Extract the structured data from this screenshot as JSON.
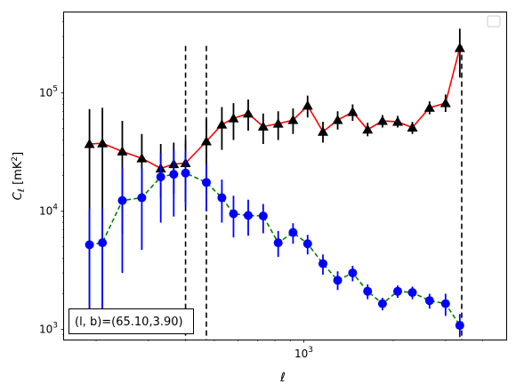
{
  "chart_data": {
    "type": "line",
    "title": "",
    "xlabel": "ℓ",
    "ylabel": "C",
    "ylabel_sub": "ℓ",
    "ylabel_unit": "[mK",
    "ylabel_unit_sup": "2",
    "ylabel_unit_end": "]",
    "xscale": "log",
    "yscale": "log",
    "xlim": [
      156,
      4800
    ],
    "ylim": [
      820,
      480000
    ],
    "x_tick_labels": [
      {
        "value": 1000,
        "base": "10",
        "exp": "3"
      }
    ],
    "y_tick_labels": [
      {
        "value": 1000,
        "base": "10",
        "exp": "3"
      },
      {
        "value": 10000,
        "base": "10",
        "exp": "4"
      },
      {
        "value": 100000,
        "base": "10",
        "exp": "5"
      }
    ],
    "legend": {
      "placement": "top-right",
      "entries": []
    },
    "vlines": [
      400,
      470,
      3400
    ],
    "annotation": "(l, b)=(65.10,3.90)",
    "series": [
      {
        "color": "#ff0000",
        "marker": "triangle",
        "marker_color": "#000000",
        "errbar_color": "#000000",
        "linestyle": "solid",
        "points": [
          {
            "x": 190,
            "y": 37000,
            "lo": 1000,
            "hi": 73000
          },
          {
            "x": 210,
            "y": 37500,
            "lo": 1000,
            "hi": 75000
          },
          {
            "x": 245,
            "y": 32000,
            "lo": 6500,
            "hi": 58000
          },
          {
            "x": 285,
            "y": 28000,
            "lo": 12000,
            "hi": 45000
          },
          {
            "x": 330,
            "y": 23000,
            "lo": 13000,
            "hi": 37000
          },
          {
            "x": 365,
            "y": 25000,
            "lo": 14000,
            "hi": 38000
          },
          {
            "x": 400,
            "y": 25500,
            "lo": 12000,
            "hi": 40000
          },
          {
            "x": 470,
            "y": 39000,
            "lo": 19000,
            "hi": 60000
          },
          {
            "x": 530,
            "y": 54000,
            "lo": 33000,
            "hi": 76000
          },
          {
            "x": 580,
            "y": 61000,
            "lo": 40000,
            "hi": 82000
          },
          {
            "x": 650,
            "y": 67000,
            "lo": 48000,
            "hi": 88000
          },
          {
            "x": 730,
            "y": 52000,
            "lo": 37000,
            "hi": 67000
          },
          {
            "x": 820,
            "y": 55000,
            "lo": 40000,
            "hi": 70000
          },
          {
            "x": 920,
            "y": 59000,
            "lo": 45000,
            "hi": 74000
          },
          {
            "x": 1030,
            "y": 78000,
            "lo": 62000,
            "hi": 95000
          },
          {
            "x": 1160,
            "y": 47000,
            "lo": 38000,
            "hi": 57000
          },
          {
            "x": 1300,
            "y": 59000,
            "lo": 49000,
            "hi": 70000
          },
          {
            "x": 1460,
            "y": 69000,
            "lo": 58000,
            "hi": 80000
          },
          {
            "x": 1640,
            "y": 49000,
            "lo": 43000,
            "hi": 56000
          },
          {
            "x": 1840,
            "y": 58000,
            "lo": 51000,
            "hi": 65000
          },
          {
            "x": 2070,
            "y": 57000,
            "lo": 51000,
            "hi": 64000
          },
          {
            "x": 2320,
            "y": 51000,
            "lo": 45000,
            "hi": 57000
          },
          {
            "x": 2650,
            "y": 75000,
            "lo": 66000,
            "hi": 85000
          },
          {
            "x": 3000,
            "y": 82000,
            "lo": 69000,
            "hi": 97000
          },
          {
            "x": 3350,
            "y": 240000,
            "lo": 135000,
            "hi": 350000
          }
        ]
      },
      {
        "color": "#008000",
        "marker": "circle",
        "marker_color": "#0000ff",
        "errbar_color": "#0000ff",
        "linestyle": "dashed",
        "points": [
          {
            "x": 190,
            "y": 5200,
            "lo": 1000,
            "hi": 10500
          },
          {
            "x": 210,
            "y": 5400,
            "lo": 1000,
            "hi": 10500
          },
          {
            "x": 245,
            "y": 12300,
            "lo": 3000,
            "hi": 23000
          },
          {
            "x": 285,
            "y": 13000,
            "lo": 4700,
            "hi": 23000
          },
          {
            "x": 330,
            "y": 19500,
            "lo": 8000,
            "hi": 31000
          },
          {
            "x": 365,
            "y": 20500,
            "lo": 9000,
            "hi": 33000
          },
          {
            "x": 400,
            "y": 21000,
            "lo": 11000,
            "hi": 32000
          },
          {
            "x": 470,
            "y": 17500,
            "lo": 10000,
            "hi": 25000
          },
          {
            "x": 530,
            "y": 13000,
            "lo": 8000,
            "hi": 18500
          },
          {
            "x": 580,
            "y": 9500,
            "lo": 6000,
            "hi": 13500
          },
          {
            "x": 650,
            "y": 9200,
            "lo": 6200,
            "hi": 12500
          },
          {
            "x": 730,
            "y": 9100,
            "lo": 6500,
            "hi": 11500
          },
          {
            "x": 820,
            "y": 5400,
            "lo": 4100,
            "hi": 6800
          },
          {
            "x": 920,
            "y": 6600,
            "lo": 5300,
            "hi": 7900
          },
          {
            "x": 1030,
            "y": 5300,
            "lo": 4300,
            "hi": 6300
          },
          {
            "x": 1160,
            "y": 3600,
            "lo": 2900,
            "hi": 4300
          },
          {
            "x": 1300,
            "y": 2600,
            "lo": 2150,
            "hi": 3100
          },
          {
            "x": 1460,
            "y": 3000,
            "lo": 2550,
            "hi": 3450
          },
          {
            "x": 1640,
            "y": 2100,
            "lo": 1800,
            "hi": 2400
          },
          {
            "x": 1840,
            "y": 1650,
            "lo": 1450,
            "hi": 1850
          },
          {
            "x": 2070,
            "y": 2100,
            "lo": 1850,
            "hi": 2350
          },
          {
            "x": 2320,
            "y": 2050,
            "lo": 1800,
            "hi": 2300
          },
          {
            "x": 2650,
            "y": 1750,
            "lo": 1500,
            "hi": 2000
          },
          {
            "x": 3000,
            "y": 1650,
            "lo": 1300,
            "hi": 2000
          },
          {
            "x": 3350,
            "y": 1080,
            "lo": 860,
            "hi": 1350
          }
        ]
      }
    ]
  }
}
